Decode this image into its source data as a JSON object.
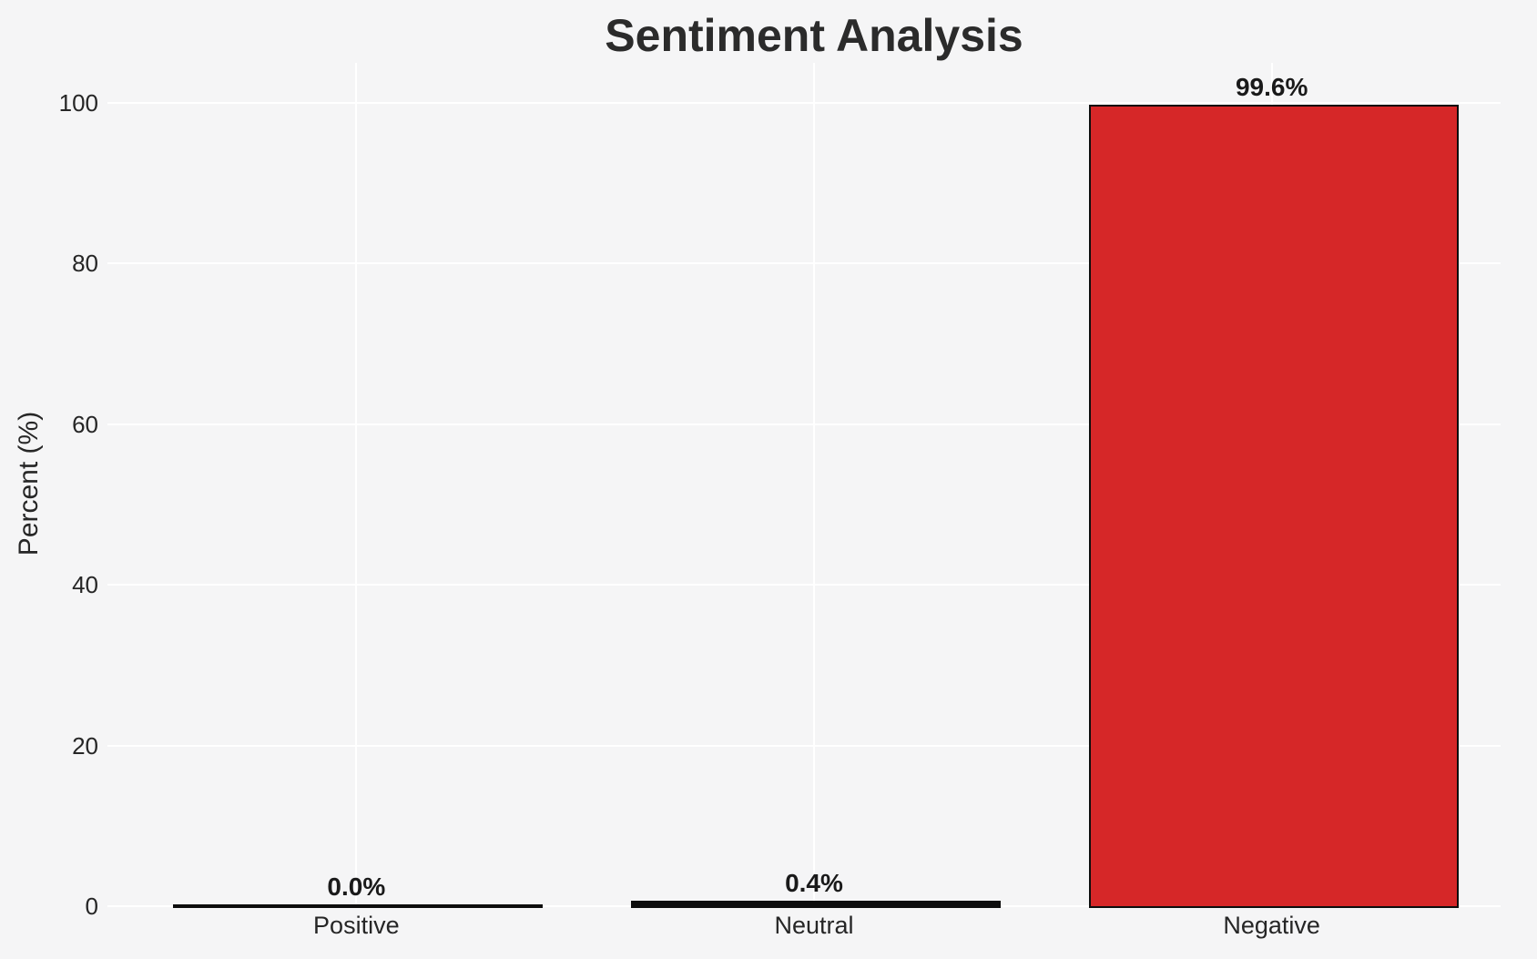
{
  "chart_data": {
    "type": "bar",
    "title": "Sentiment Analysis",
    "xlabel": "",
    "ylabel": "Percent (%)",
    "categories": [
      "Positive",
      "Neutral",
      "Negative"
    ],
    "values": [
      0.0,
      0.4,
      99.6
    ],
    "bar_value_labels": [
      "0.0%",
      "0.4%",
      "99.6%"
    ],
    "yticks": [
      0,
      20,
      40,
      60,
      80,
      100
    ],
    "ytick_labels": [
      "0",
      "20",
      "40",
      "60",
      "80",
      "100"
    ],
    "ylim": [
      0,
      105
    ],
    "bar_width_fraction": 0.8,
    "grid": "horizontal and vertical white gridlines, no axis spines",
    "legend": false,
    "colors": {
      "figure_background": "#f5f5f6",
      "grid": "#ffffff",
      "bar_fills": [
        null,
        null,
        "#d62728"
      ],
      "bar_edge": "#0d0d0d",
      "title_text": "#2b2b2b",
      "tick_text": "#262626",
      "value_label_text": "#1a1a1a"
    }
  }
}
